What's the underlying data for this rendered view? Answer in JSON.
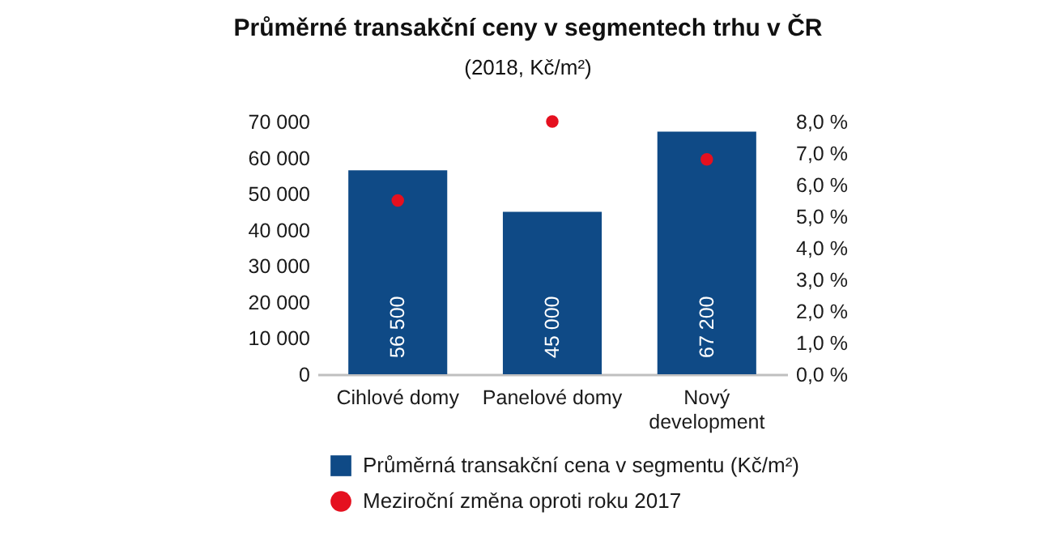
{
  "chart_data": {
    "type": "bar",
    "title": "Průměrné transakční ceny v segmentech trhu v ČR",
    "subtitle": "(2018, Kč/m²)",
    "categories": [
      "Cihlové domy",
      "Panelové domy",
      "Nový development"
    ],
    "series": [
      {
        "name": "Průměrná transakční cena v segmentu (Kč/m²)",
        "color": "#0f4a86",
        "values": [
          56500,
          45000,
          67200
        ],
        "value_labels": [
          "56 500",
          "45 000",
          "67 200"
        ]
      },
      {
        "name": "Meziroční změna oproti roku 2017",
        "type": "scatter",
        "marker": "circle",
        "color": "#e5101f",
        "values": [
          5.5,
          8.0,
          6.8
        ],
        "axis": "y2"
      }
    ],
    "ylim": [
      0,
      70000
    ],
    "yticks": [
      0,
      {
        "value": 10000,
        "label": "10 000"
      },
      {
        "value": 20000,
        "label": "20 000"
      },
      {
        "value": 30000,
        "label": "30 000"
      },
      {
        "value": 40000,
        "label": "40 000"
      },
      {
        "value": 50000,
        "label": "50 000"
      },
      {
        "value": 60000,
        "label": "60 000"
      },
      {
        "value": 70000,
        "label": "70 000"
      }
    ],
    "y2lim": [
      0,
      8
    ],
    "y2ticks": [
      {
        "value": 0,
        "label": "0,0 %"
      },
      {
        "value": 1,
        "label": "1,0 %"
      },
      {
        "value": 2,
        "label": "2,0 %"
      },
      {
        "value": 3,
        "label": "3,0 %"
      },
      {
        "value": 4,
        "label": "4,0 %"
      },
      {
        "value": 5,
        "label": "5,0 %"
      },
      {
        "value": 6,
        "label": "6,0 %"
      },
      {
        "value": 7,
        "label": "7,0 %"
      },
      {
        "value": 8,
        "label": "8,0 %"
      }
    ],
    "grid": false,
    "legend": "bottom"
  }
}
